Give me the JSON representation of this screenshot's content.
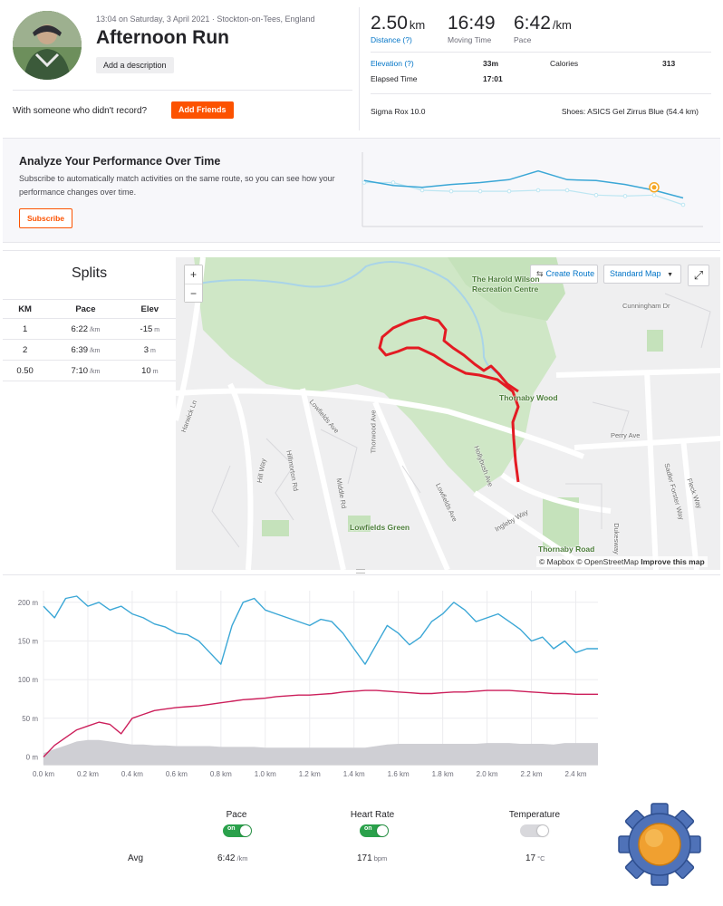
{
  "activity": {
    "datetime_location": "13:04 on Saturday, 3 April 2021 · Stockton-on-Tees, England",
    "title": "Afternoon Run",
    "add_description_label": "Add a description",
    "with_someone_text": "With someone who didn't record?",
    "add_friends_label": "Add Friends"
  },
  "stats": {
    "distance": {
      "value": "2.50",
      "unit": "km",
      "label": "Distance (?)"
    },
    "moving_time": {
      "value": "16:49",
      "label": "Moving Time"
    },
    "pace": {
      "value": "6:42",
      "unit": "/km",
      "label": "Pace"
    },
    "elevation": {
      "label": "Elevation (?)",
      "value": "33m"
    },
    "calories": {
      "label": "Calories",
      "value": "313"
    },
    "elapsed": {
      "label": "Elapsed Time",
      "value": "17:01"
    },
    "device": "Sigma Rox 10.0",
    "shoes": "Shoes: ASICS Gel Zirrus Blue (54.4 km)"
  },
  "analyze": {
    "title": "Analyze Your Performance Over Time",
    "text": "Subscribe to automatically match activities on the same route, so you can see how your performance changes over time.",
    "button": "Subscribe"
  },
  "splits": {
    "title": "Splits",
    "headers": [
      "KM",
      "Pace",
      "Elev"
    ],
    "rows": [
      {
        "km": "1",
        "pace": "6:22",
        "pace_unit": "/km",
        "elev": "-15",
        "elev_unit": "m"
      },
      {
        "km": "2",
        "pace": "6:39",
        "pace_unit": "/km",
        "elev": "3",
        "elev_unit": "m"
      },
      {
        "km": "0.50",
        "pace": "7:10",
        "pace_unit": "/km",
        "elev": "10",
        "elev_unit": "m"
      }
    ]
  },
  "map": {
    "zoom_in": "+",
    "zoom_out": "−",
    "create_route": "Create Route",
    "map_style": "Standard Map",
    "places": [
      "The Harold Wilson",
      "Recreation Centre",
      "Thornaby Wood",
      "Lowfields Green",
      "Thornaby Road",
      "Cunningham Dr",
      "Perry Ave",
      "Lowfields Ave",
      "Thorwood Ave",
      "Hollybush Ave",
      "Ingleby Way",
      "Sadler Forster Way",
      "Fleck Way",
      "Dukesway",
      "Hill Way",
      "Hillmorton Rd",
      "Middle Rd",
      "Lowfields Ave",
      "Harwick Ln"
    ],
    "attribution_mapbox": "© Mapbox",
    "attribution_osm": "© OpenStreetMap",
    "improve": "Improve this map",
    "colors": {
      "route": "#e31b23",
      "park": "#c9e6c0"
    }
  },
  "chart_data": {
    "type": "line",
    "x": [
      0.0,
      0.05,
      0.1,
      0.15,
      0.2,
      0.25,
      0.3,
      0.35,
      0.4,
      0.45,
      0.5,
      0.55,
      0.6,
      0.65,
      0.7,
      0.75,
      0.8,
      0.85,
      0.9,
      0.95,
      1.0,
      1.05,
      1.1,
      1.15,
      1.2,
      1.25,
      1.3,
      1.35,
      1.4,
      1.45,
      1.5,
      1.55,
      1.6,
      1.65,
      1.7,
      1.75,
      1.8,
      1.85,
      1.9,
      1.95,
      2.0,
      2.05,
      2.1,
      2.15,
      2.2,
      2.25,
      2.3,
      2.35,
      2.4,
      2.45,
      2.5
    ],
    "xticks": [
      "0.0 km",
      "0.2 km",
      "0.4 km",
      "0.6 km",
      "0.8 km",
      "1.0 km",
      "1.2 km",
      "1.4 km",
      "1.6 km",
      "1.8 km",
      "2.0 km",
      "2.2 km",
      "2.4 km"
    ],
    "yticks": [
      "0 m",
      "50 m",
      "100 m",
      "150 m",
      "200 m"
    ],
    "ylim": [
      -10,
      215
    ],
    "series": [
      {
        "values": [
          195,
          180,
          205,
          208,
          195,
          200,
          190,
          195,
          185,
          180,
          172,
          168,
          160,
          158,
          150,
          135,
          120,
          170,
          200,
          205,
          190,
          185,
          180,
          175,
          170,
          178,
          175,
          160,
          140,
          120,
          145,
          170,
          160,
          145,
          155,
          175,
          185,
          200,
          190,
          175,
          180,
          185,
          175,
          165,
          150,
          155,
          140,
          150,
          135,
          140,
          140
        ],
        "color": "#3ba7d6"
      },
      {
        "values": [
          0,
          15,
          25,
          35,
          40,
          45,
          42,
          30,
          50,
          55,
          60,
          62,
          64,
          65,
          66,
          68,
          70,
          72,
          74,
          75,
          76,
          78,
          79,
          80,
          80,
          81,
          82,
          84,
          85,
          86,
          86,
          85,
          84,
          83,
          82,
          82,
          83,
          84,
          84,
          85,
          86,
          86,
          86,
          85,
          84,
          83,
          82,
          82,
          81,
          81,
          81
        ],
        "color": "#cc1f5b"
      },
      {
        "values": [
          5,
          10,
          15,
          20,
          22,
          22,
          20,
          18,
          16,
          16,
          15,
          15,
          14,
          14,
          14,
          14,
          13,
          13,
          13,
          13,
          12,
          12,
          12,
          12,
          12,
          12,
          12,
          12,
          12,
          12,
          14,
          16,
          17,
          17,
          17,
          17,
          17,
          17,
          17,
          17,
          18,
          18,
          18,
          17,
          17,
          17,
          16,
          18,
          18,
          18,
          18
        ],
        "color": "#cfcfd4"
      }
    ]
  },
  "performance_chart": {
    "type": "line",
    "series": [
      {
        "values": [
          40,
          35,
          33,
          36,
          38,
          41,
          50,
          41,
          40,
          36,
          30,
          22
        ],
        "color": "#3ba7d6"
      },
      {
        "values": [
          38,
          38,
          30,
          29,
          29,
          29,
          30,
          30,
          25,
          24,
          25,
          15
        ],
        "color": "#bde6f2"
      }
    ],
    "highlight_color": "#f5a623"
  },
  "bottom": {
    "pace_label": "Pace",
    "hr_label": "Heart Rate",
    "temp_label": "Temperature",
    "toggle_on_text": "on",
    "avg_label": "Avg",
    "avg_pace": "6:42",
    "avg_pace_unit": "/km",
    "avg_hr": "171",
    "avg_hr_unit": "bpm",
    "avg_temp": "17",
    "avg_temp_unit": "°C"
  },
  "gear_icon": "gear-icon"
}
